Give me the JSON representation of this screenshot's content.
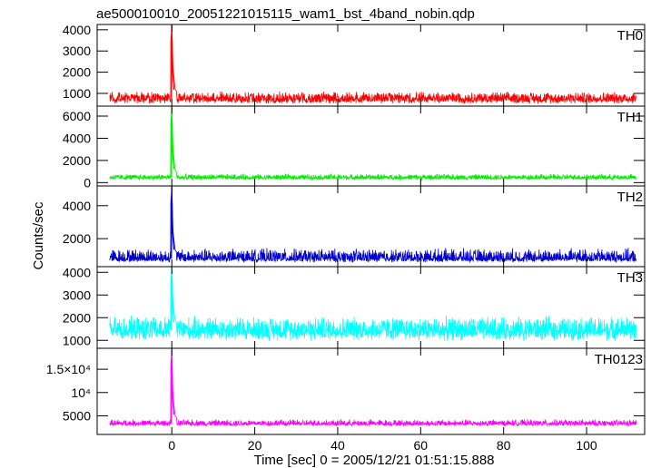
{
  "figure": {
    "title": "ae500010010_20051221015115_wam1_bst_4band_nobin.qdp",
    "ylabel": "Counts/sec",
    "xlabel": "Time [sec] 0 = 2005/12/21 01:51:15.888"
  },
  "chart_data": [
    {
      "type": "line",
      "title": "",
      "xlabel": "Time [sec] 0 = 2005/12/21 01:51:15.888",
      "ylabel": "Counts/sec",
      "xlim": [
        -18,
        114
      ],
      "ylim": [
        400,
        4250
      ],
      "xticks": [
        0,
        20,
        40,
        60,
        80,
        100
      ],
      "yticks": [
        1000,
        2000,
        3000,
        4000
      ],
      "ytick_labels": [
        "1000",
        "2000",
        "3000",
        "4000"
      ],
      "grid": false,
      "series": [
        {
          "name": "TH0",
          "color": "#ff0000",
          "baseline": 750,
          "noise_range": [
            500,
            1100
          ],
          "x": [
            -15,
            -1,
            0,
            0.3,
            0.8,
            2,
            112
          ],
          "y": [
            750,
            800,
            4250,
            2200,
            1200,
            850,
            750
          ]
        }
      ]
    },
    {
      "type": "line",
      "title": "",
      "xlabel": "Time [sec] 0 = 2005/12/21 01:51:15.888",
      "ylabel": "Counts/sec",
      "xlim": [
        -18,
        114
      ],
      "ylim": [
        -300,
        6900
      ],
      "xticks": [
        0,
        20,
        40,
        60,
        80,
        100
      ],
      "yticks": [
        0,
        2000,
        4000,
        6000
      ],
      "ytick_labels": [
        "0",
        "2000",
        "4000",
        "6000"
      ],
      "grid": false,
      "series": [
        {
          "name": "TH1",
          "color": "#00ee00",
          "baseline": 450,
          "noise_range": [
            250,
            800
          ],
          "x": [
            -15,
            -1,
            0,
            0.3,
            0.8,
            2,
            112
          ],
          "y": [
            450,
            500,
            6900,
            3000,
            1100,
            550,
            450
          ]
        }
      ]
    },
    {
      "type": "line",
      "title": "",
      "xlabel": "Time [sec] 0 = 2005/12/21 01:51:15.888",
      "ylabel": "Counts/sec",
      "xlim": [
        -18,
        114
      ],
      "ylim": [
        300,
        5200
      ],
      "xticks": [
        0,
        20,
        40,
        60,
        80,
        100
      ],
      "yticks": [
        2000,
        4000
      ],
      "ytick_labels": [
        "2000",
        "4000"
      ],
      "grid": false,
      "series": [
        {
          "name": "TH2",
          "color": "#0000cc",
          "baseline": 800,
          "noise_range": [
            550,
            1450
          ],
          "x": [
            -15,
            -1,
            0,
            0.3,
            0.8,
            2,
            112
          ],
          "y": [
            800,
            900,
            5200,
            2400,
            1300,
            900,
            800
          ]
        }
      ]
    },
    {
      "type": "line",
      "title": "",
      "xlabel": "Time [sec] 0 = 2005/12/21 01:51:15.888",
      "ylabel": "Counts/sec",
      "xlim": [
        -18,
        114
      ],
      "ylim": [
        650,
        4250
      ],
      "xticks": [
        0,
        20,
        40,
        60,
        80,
        100
      ],
      "yticks": [
        1000,
        2000,
        3000,
        4000
      ],
      "ytick_labels": [
        "1000",
        "2000",
        "3000",
        "4000"
      ],
      "grid": false,
      "series": [
        {
          "name": "TH3",
          "color": "#00ffff",
          "baseline": 1450,
          "noise_range": [
            950,
            2100
          ],
          "x": [
            -15,
            -1,
            0,
            0.3,
            0.8,
            2,
            112
          ],
          "y": [
            1450,
            1500,
            4250,
            2600,
            1900,
            1500,
            1450
          ]
        }
      ]
    },
    {
      "type": "line",
      "title": "",
      "xlabel": "Time [sec] 0 = 2005/12/21 01:51:15.888",
      "ylabel": "Counts/sec",
      "xlim": [
        -18,
        114
      ],
      "ylim": [
        1000,
        19500
      ],
      "xticks": [
        0,
        20,
        40,
        60,
        80,
        100
      ],
      "yticks": [
        5000,
        10000,
        15000
      ],
      "ytick_labels": [
        "5000",
        "10⁴",
        "1.5×10⁴"
      ],
      "grid": false,
      "series": [
        {
          "name": "TH0123",
          "color": "#ff00ff",
          "baseline": 3300,
          "noise_range": [
            2800,
            4300
          ],
          "x": [
            -15,
            -1,
            0,
            0.3,
            0.8,
            2,
            112
          ],
          "y": [
            3300,
            3500,
            19500,
            9000,
            5000,
            3600,
            3300
          ]
        }
      ]
    }
  ]
}
